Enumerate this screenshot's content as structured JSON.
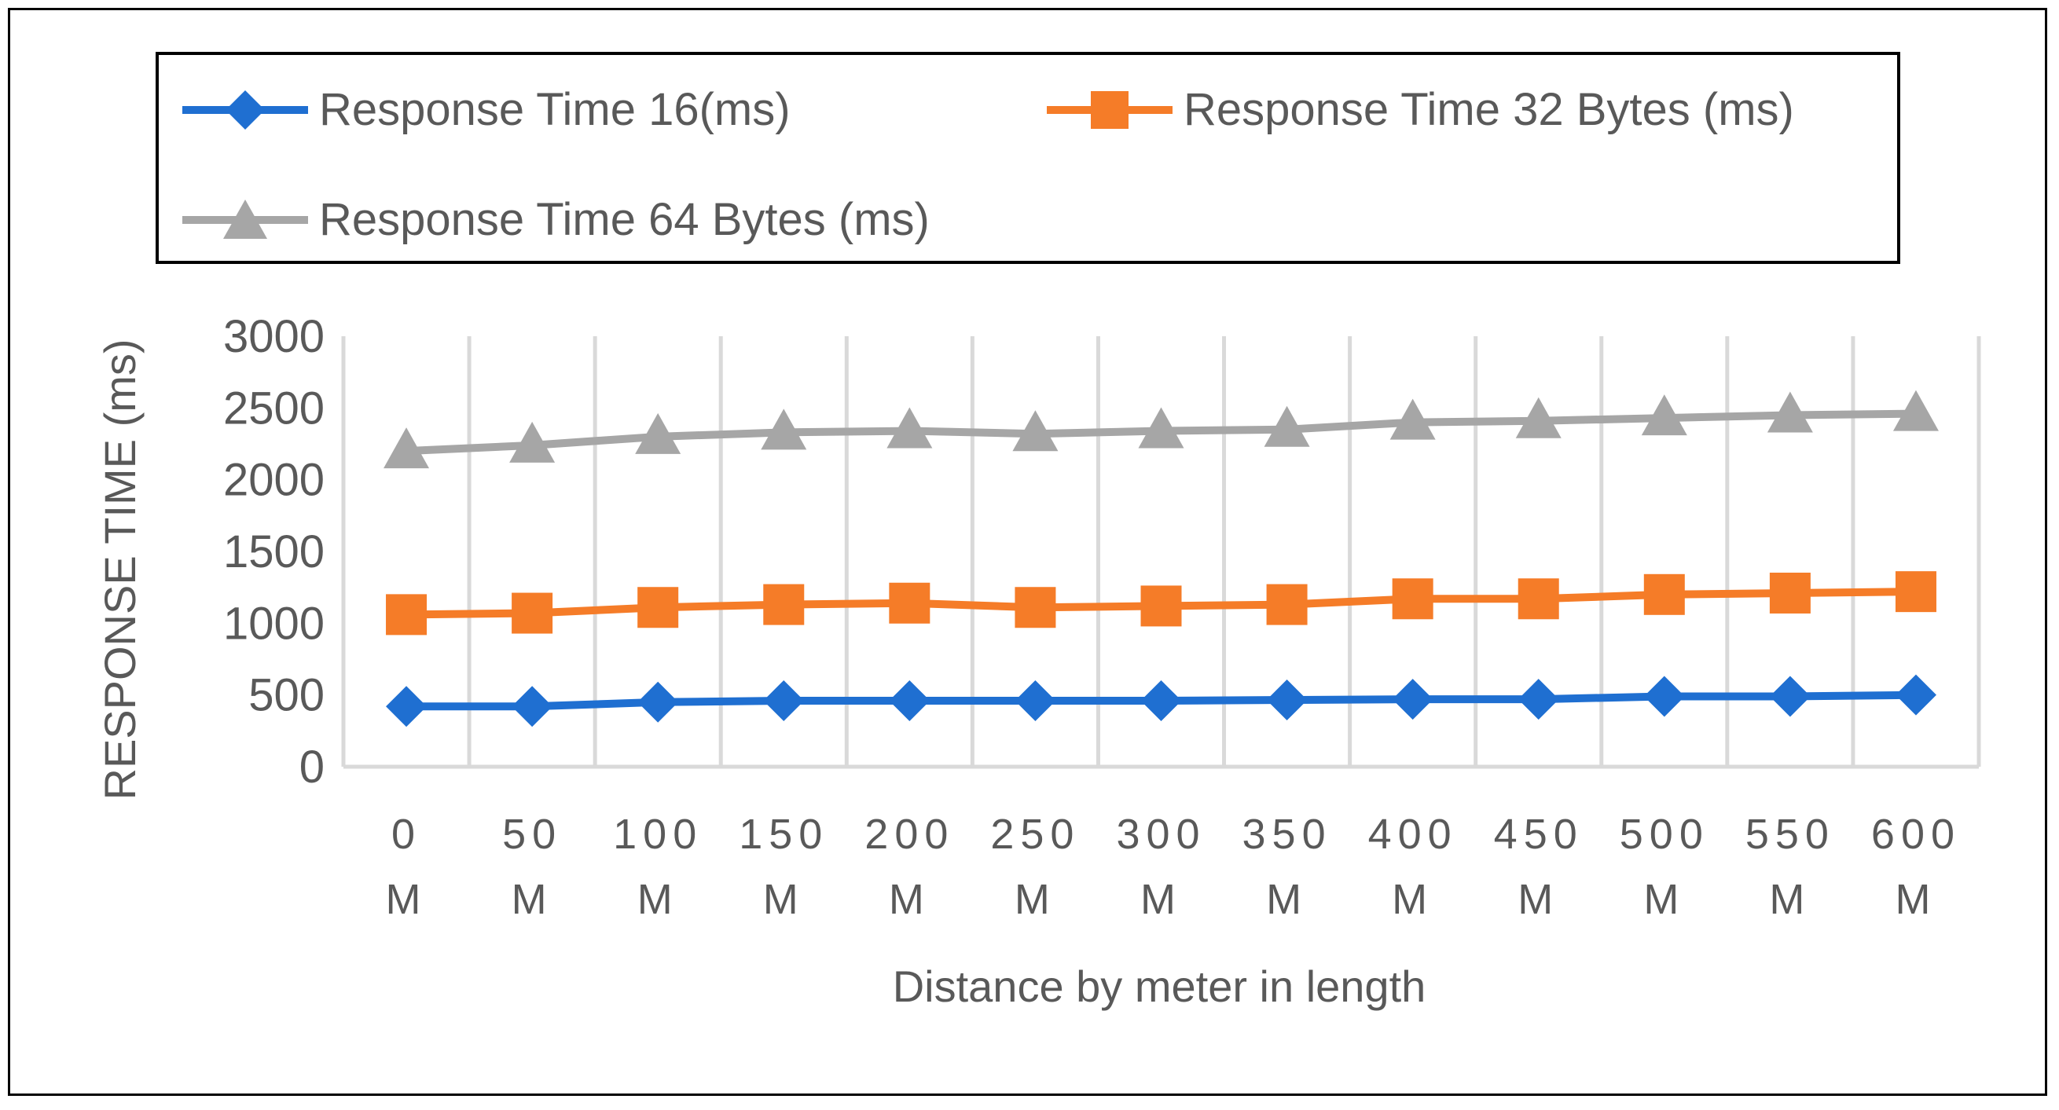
{
  "chart_data": {
    "type": "line",
    "title": "",
    "xlabel": "Distance by meter in length",
    "ylabel": "RESPONSE TIME (ms)",
    "ylim": [
      0,
      3000
    ],
    "yticks": [
      0,
      500,
      1000,
      1500,
      2000,
      2500,
      3000
    ],
    "grid": "vertical",
    "legend_position": "top",
    "categories": [
      [
        "0",
        "M"
      ],
      [
        "50",
        "M"
      ],
      [
        "100",
        "M"
      ],
      [
        "150",
        "M"
      ],
      [
        "200",
        "M"
      ],
      [
        "250",
        "M"
      ],
      [
        "300",
        "M"
      ],
      [
        "350",
        "M"
      ],
      [
        "400",
        "M"
      ],
      [
        "450",
        "M"
      ],
      [
        "500",
        "M"
      ],
      [
        "550",
        "M"
      ],
      [
        "600",
        "M"
      ]
    ],
    "series": [
      {
        "name": "Response Time 16(ms)",
        "color": "#1f6fd1",
        "marker": "diamond",
        "values": [
          420,
          420,
          450,
          460,
          460,
          460,
          460,
          465,
          470,
          470,
          490,
          490,
          500
        ]
      },
      {
        "name": "Response Time 32 Bytes (ms)",
        "color": "#f57c28",
        "marker": "square",
        "values": [
          1060,
          1070,
          1110,
          1130,
          1140,
          1110,
          1120,
          1130,
          1170,
          1170,
          1200,
          1210,
          1220
        ]
      },
      {
        "name": "Response Time 64 Bytes (ms)",
        "color": "#a6a6a6",
        "marker": "triangle",
        "values": [
          2200,
          2240,
          2300,
          2330,
          2340,
          2320,
          2340,
          2350,
          2400,
          2410,
          2430,
          2450,
          2460
        ]
      }
    ]
  }
}
